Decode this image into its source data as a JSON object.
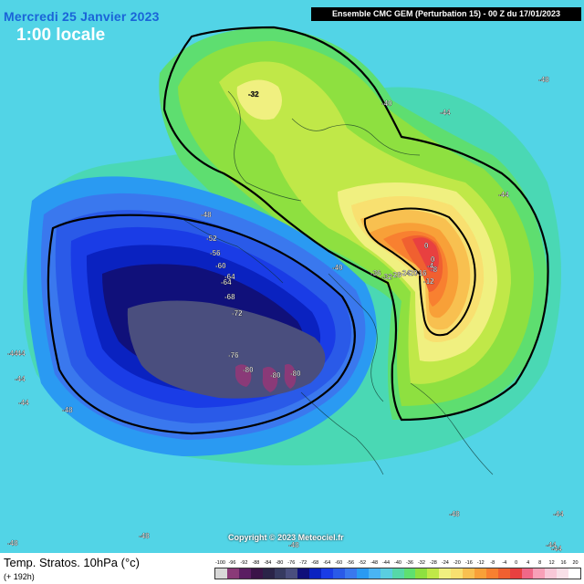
{
  "header": {
    "date_title": "Mercredi 25 Janvier 2023",
    "local_time": "1:00 locale",
    "model_title": "Ensemble CMC GEM  (Perturbation 15)  - 00 Z du 17/01/2023"
  },
  "footer": {
    "variable": "Temp. Stratos. 10hPa (°c)",
    "lead_time": "(+ 192h)",
    "copyright": "Copyright © 2023 Meteociel.fr"
  },
  "colorbar": {
    "labels": [
      "-100",
      "-96",
      "-92",
      "-88",
      "-84",
      "-80",
      "-76",
      "-72",
      "-68",
      "-64",
      "-60",
      "-56",
      "-52",
      "-48",
      "-44",
      "-40",
      "-36",
      "-32",
      "-28",
      "-24",
      "-20",
      "-16",
      "-12",
      "-8",
      "-4",
      "0",
      "4",
      "8",
      "12",
      "16",
      "20"
    ],
    "colors": [
      "#d8d8d8",
      "#8a3a78",
      "#5a1e62",
      "#3a1448",
      "#2a2448",
      "#363a60",
      "#4a4e7e",
      "#10107a",
      "#0a22c0",
      "#1a3ce6",
      "#2a5ae8",
      "#3a78ee",
      "#2a9af2",
      "#4ab4f4",
      "#5acee0",
      "#56d8a8",
      "#5ee070",
      "#8ee040",
      "#c0e848",
      "#f0f080",
      "#f8e070",
      "#f8c050",
      "#f8a038",
      "#f88030",
      "#f06030",
      "#e84040",
      "#f06888",
      "#f8a0b8",
      "#f8c8d8",
      "#f8e0e8",
      "#ffffff"
    ]
  },
  "map_labels": [
    {
      "text": "-32",
      "color": "#222222"
    },
    {
      "text": "-40",
      "color": "#ffffff"
    },
    {
      "text": "-44",
      "color": "#ffffff"
    },
    {
      "text": "-48",
      "color": "#ffffff"
    },
    {
      "text": "-44",
      "color": "#ffffff"
    },
    {
      "text": "-44",
      "color": "#ffffff"
    },
    {
      "text": "-48",
      "color": "#ffffff"
    },
    {
      "text": "-52",
      "color": "#ffffff"
    },
    {
      "text": "-56",
      "color": "#ffffff"
    },
    {
      "text": "-60",
      "color": "#ffffff"
    },
    {
      "text": "-64",
      "color": "#ffffff"
    },
    {
      "text": "-64",
      "color": "#ffffff"
    },
    {
      "text": "-68",
      "color": "#ffffff"
    },
    {
      "text": "-72",
      "color": "#ffffff"
    },
    {
      "text": "-76",
      "color": "#ffffff"
    },
    {
      "text": "-80",
      "color": "#ffffff"
    },
    {
      "text": "-80",
      "color": "#ffffff"
    },
    {
      "text": "-80",
      "color": "#ffffff"
    },
    {
      "text": "-44",
      "color": "#ffffff"
    },
    {
      "text": "-44",
      "color": "#ffffff"
    },
    {
      "text": "-44",
      "color": "#ffffff"
    },
    {
      "text": "-48",
      "color": "#ffffff"
    },
    {
      "text": "-48",
      "color": "#ffffff"
    },
    {
      "text": "-48",
      "color": "#ffffff"
    },
    {
      "text": "-48",
      "color": "#ffffff"
    },
    {
      "text": "-44",
      "color": "#ffffff"
    },
    {
      "text": "-44",
      "color": "#ffffff"
    },
    {
      "text": "-48",
      "color": "#ffffff"
    },
    {
      "text": "-44",
      "color": "#ffffff"
    },
    {
      "text": "-40",
      "color": "#ffffff"
    },
    {
      "text": "-36",
      "color": "#ffffff"
    },
    {
      "text": "-32",
      "color": "#ffffff"
    },
    {
      "text": "-28",
      "color": "#ffffff"
    },
    {
      "text": "-24",
      "color": "#ffffff"
    },
    {
      "text": "-20",
      "color": "#ffffff"
    },
    {
      "text": "-16",
      "color": "#ffffff"
    },
    {
      "text": "-8",
      "color": "#ffffff"
    },
    {
      "text": "-4",
      "color": "#ffffff"
    },
    {
      "text": "-12",
      "color": "#ffffff"
    },
    {
      "text": "0",
      "color": "#ffffff"
    },
    {
      "text": "0",
      "color": "#ffffff"
    }
  ]
}
